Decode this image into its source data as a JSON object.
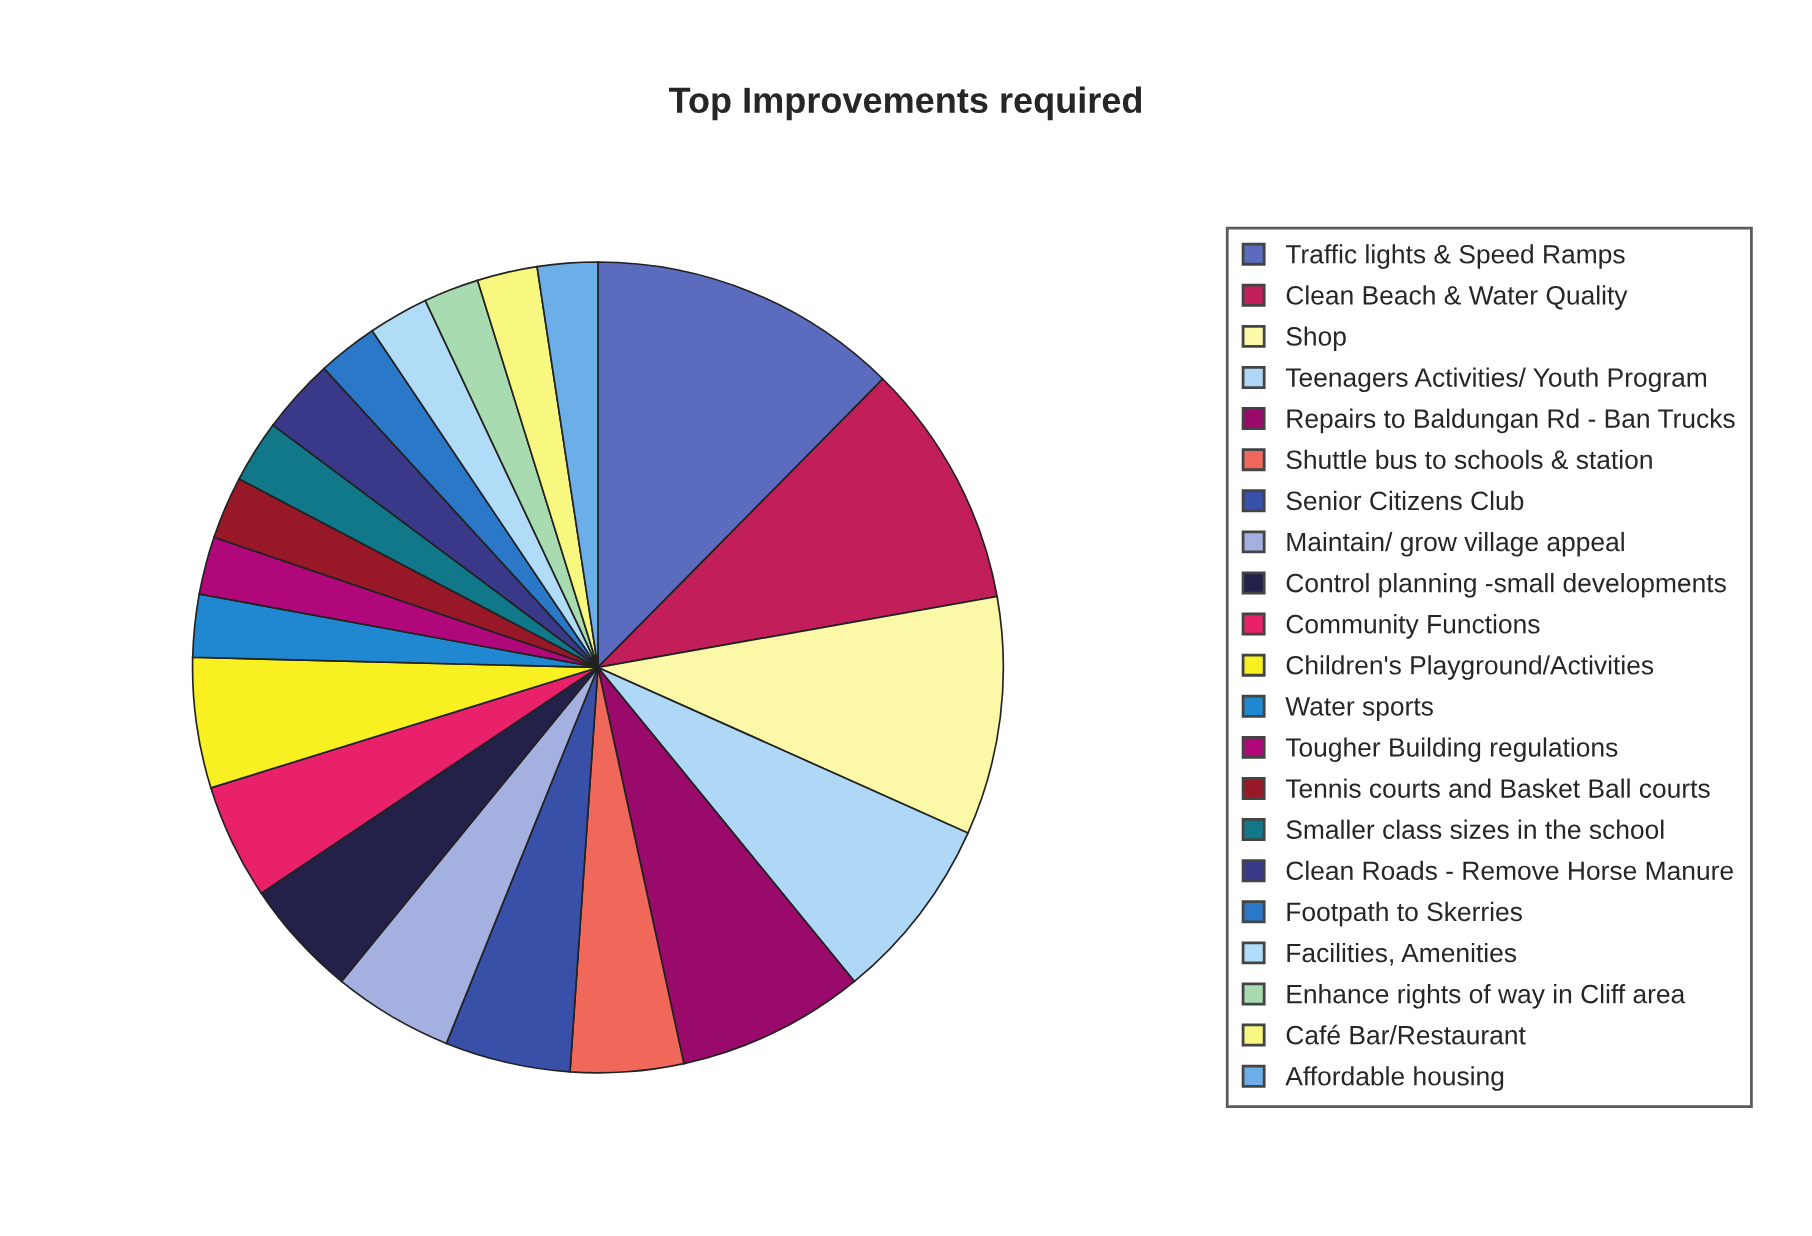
{
  "chart_data": {
    "type": "pie",
    "title": "Top Improvements required",
    "categories": [
      "Traffic lights & Speed Ramps",
      "Clean Beach & Water Quality",
      "Shop",
      "Teenagers Activities/ Youth Program",
      "Repairs to Baldungan Rd - Ban Trucks",
      "Shuttle bus to schools & station",
      "Senior Citizens Club",
      "Maintain/ grow village appeal",
      "Control planning -small developments",
      "Community Functions",
      "Children's Playground/Activities",
      "Water sports",
      "Tougher Building regulations",
      "Tennis courts and Basket Ball courts",
      "Smaller class sizes in the school",
      "Clean Roads - Remove Horse Manure",
      "Footpath to Skerries",
      "Facilities, Amenities",
      "Enhance rights of way in Cliff area",
      "Café Bar/Restaurant",
      "Affordable housing"
    ],
    "values": [
      12.4,
      9.8,
      9.5,
      7.4,
      7.5,
      4.5,
      5.0,
      4.8,
      4.7,
      4.6,
      5.2,
      2.5,
      2.3,
      2.5,
      2.5,
      3.0,
      2.4,
      2.4,
      2.2,
      2.4,
      2.4
    ],
    "colors": [
      "#5b6cbf",
      "#c21e5a",
      "#fbf8a8",
      "#aed8f5",
      "#990a6a",
      "#f0685a",
      "#3850a8",
      "#a4b0e0",
      "#23214a",
      "#e8216a",
      "#f8f020",
      "#2088d0",
      "#b0087a",
      "#981828",
      "#107888",
      "#3a3888",
      "#2c78c8",
      "#b0dcf8",
      "#a8dcb0",
      "#f8f880",
      "#6caee8"
    ],
    "legend": "right"
  }
}
